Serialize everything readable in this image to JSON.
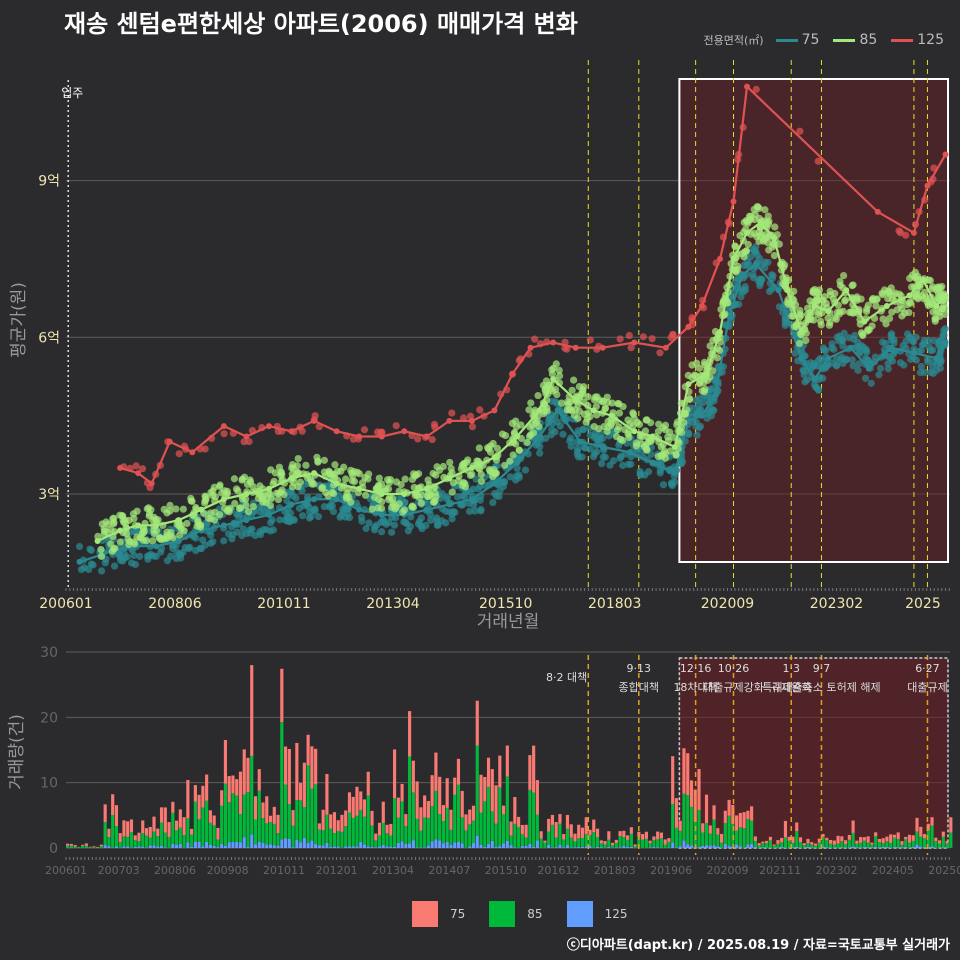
{
  "title": "재송 센텀e편한세상 아파트(2006) 매매가격 변화",
  "caption": "ⓒ디아파트(dapt.kr) / 2025.08.19 / 자료=국토교통부 실거래가",
  "legend_top": {
    "title": "전용면적(㎡)",
    "items": [
      {
        "name": "75",
        "color": "#2a8a92"
      },
      {
        "name": "85",
        "color": "#a3e87a"
      },
      {
        "name": "125",
        "color": "#e05252"
      }
    ]
  },
  "legend_bottom": {
    "items": [
      {
        "name": "75",
        "color": "#f87a72"
      },
      {
        "name": "85",
        "color": "#00b93a"
      },
      {
        "name": "125",
        "color": "#619cff"
      }
    ]
  },
  "chart_data": [
    {
      "type": "line",
      "xlabel": "거래년월",
      "ylabel": "평균가(원)",
      "x_ticks": [
        "200601",
        "200806",
        "201011",
        "201304",
        "201510",
        "201803",
        "202009",
        "202302",
        "2025"
      ],
      "y_ticks": [
        {
          "value": 3,
          "label": "3억"
        },
        {
          "value": 6,
          "label": "6억"
        },
        {
          "value": 9,
          "label": "9억"
        }
      ],
      "ylim": [
        1.2,
        11.5
      ],
      "xlim": [
        2006.0,
        2025.6
      ],
      "annotation": "입주",
      "grid": true,
      "highlight_range": [
        2019.6,
        2025.6
      ],
      "policy_lines": [
        2017.58,
        2018.7,
        2019.96,
        2020.8,
        2022.08,
        2022.75,
        2024.8,
        2025.1
      ],
      "series": [
        {
          "name": "75",
          "color": "#2a8a92",
          "points": [
            [
              2006.3,
              1.7
            ],
            [
              2007.0,
              1.9
            ],
            [
              2007.5,
              2.0
            ],
            [
              2008.0,
              2.0
            ],
            [
              2008.5,
              2.1
            ],
            [
              2009.0,
              2.3
            ],
            [
              2009.5,
              2.4
            ],
            [
              2010.0,
              2.5
            ],
            [
              2010.5,
              2.6
            ],
            [
              2011.0,
              2.8
            ],
            [
              2011.5,
              2.9
            ],
            [
              2012.0,
              2.9
            ],
            [
              2012.5,
              2.7
            ],
            [
              2013.0,
              2.6
            ],
            [
              2013.5,
              2.6
            ],
            [
              2014.0,
              2.7
            ],
            [
              2014.5,
              2.8
            ],
            [
              2015.0,
              2.9
            ],
            [
              2015.5,
              3.2
            ],
            [
              2016.0,
              3.6
            ],
            [
              2016.5,
              4.1
            ],
            [
              2016.9,
              4.6
            ],
            [
              2017.4,
              4.0
            ],
            [
              2017.9,
              3.9
            ],
            [
              2018.5,
              3.8
            ],
            [
              2019.0,
              3.6
            ],
            [
              2019.5,
              3.4
            ],
            [
              2019.8,
              4.4
            ],
            [
              2020.1,
              4.5
            ],
            [
              2020.4,
              4.9
            ],
            [
              2020.7,
              6.4
            ],
            [
              2021.0,
              7.2
            ],
            [
              2021.3,
              7.4
            ],
            [
              2021.8,
              6.9
            ],
            [
              2022.3,
              5.6
            ],
            [
              2022.6,
              5.2
            ],
            [
              2022.9,
              5.6
            ],
            [
              2023.4,
              5.8
            ],
            [
              2023.8,
              5.4
            ],
            [
              2024.3,
              5.8
            ],
            [
              2024.8,
              5.7
            ],
            [
              2025.3,
              5.6
            ],
            [
              2025.5,
              5.9
            ]
          ]
        },
        {
          "name": "85",
          "color": "#a3e87a",
          "points": [
            [
              2006.7,
              2.1
            ],
            [
              2007.2,
              2.3
            ],
            [
              2007.6,
              2.4
            ],
            [
              2008.0,
              2.4
            ],
            [
              2008.5,
              2.5
            ],
            [
              2009.0,
              2.7
            ],
            [
              2009.5,
              2.9
            ],
            [
              2010.0,
              3.0
            ],
            [
              2010.5,
              3.1
            ],
            [
              2011.0,
              3.3
            ],
            [
              2011.5,
              3.4
            ],
            [
              2012.0,
              3.2
            ],
            [
              2012.5,
              3.1
            ],
            [
              2013.0,
              3.0
            ],
            [
              2013.5,
              3.0
            ],
            [
              2014.0,
              3.1
            ],
            [
              2014.5,
              3.3
            ],
            [
              2015.0,
              3.5
            ],
            [
              2015.5,
              3.7
            ],
            [
              2016.0,
              4.1
            ],
            [
              2016.5,
              4.6
            ],
            [
              2016.8,
              5.2
            ],
            [
              2017.3,
              4.8
            ],
            [
              2017.7,
              4.6
            ],
            [
              2018.1,
              4.5
            ],
            [
              2018.6,
              4.2
            ],
            [
              2019.0,
              4.1
            ],
            [
              2019.5,
              3.9
            ],
            [
              2019.8,
              5.1
            ],
            [
              2020.2,
              5.3
            ],
            [
              2020.5,
              6.1
            ],
            [
              2020.8,
              7.5
            ],
            [
              2021.1,
              8.0
            ],
            [
              2021.4,
              8.2
            ],
            [
              2021.7,
              7.9
            ],
            [
              2022.0,
              6.9
            ],
            [
              2022.3,
              6.1
            ],
            [
              2022.6,
              6.6
            ],
            [
              2022.9,
              6.5
            ],
            [
              2023.3,
              6.9
            ],
            [
              2023.7,
              6.3
            ],
            [
              2024.2,
              6.6
            ],
            [
              2024.7,
              6.8
            ],
            [
              2025.0,
              7.1
            ],
            [
              2025.3,
              6.6
            ],
            [
              2025.5,
              6.8
            ]
          ]
        },
        {
          "name": "125",
          "color": "#e05252",
          "points": [
            [
              2007.2,
              3.5
            ],
            [
              2007.6,
              3.4
            ],
            [
              2007.9,
              3.2
            ],
            [
              2008.3,
              4.0
            ],
            [
              2008.8,
              3.8
            ],
            [
              2009.5,
              4.3
            ],
            [
              2010.0,
              4.1
            ],
            [
              2010.5,
              4.3
            ],
            [
              2011.0,
              4.2
            ],
            [
              2011.5,
              4.4
            ],
            [
              2012.0,
              4.2
            ],
            [
              2012.5,
              4.1
            ],
            [
              2013.0,
              4.1
            ],
            [
              2013.5,
              4.2
            ],
            [
              2014.0,
              4.1
            ],
            [
              2014.5,
              4.4
            ],
            [
              2015.0,
              4.4
            ],
            [
              2015.5,
              4.6
            ],
            [
              2015.9,
              5.3
            ],
            [
              2016.3,
              5.8
            ],
            [
              2016.8,
              5.9
            ],
            [
              2017.3,
              5.8
            ],
            [
              2017.9,
              5.8
            ],
            [
              2018.6,
              5.9
            ],
            [
              2019.3,
              5.8
            ],
            [
              2019.8,
              6.2
            ],
            [
              2020.1,
              6.6
            ],
            [
              2020.5,
              7.5
            ],
            [
              2020.8,
              8.6
            ],
            [
              2021.1,
              10.8
            ],
            [
              2024.0,
              8.4
            ],
            [
              2024.8,
              8.0
            ],
            [
              2025.1,
              8.9
            ],
            [
              2025.5,
              9.5
            ]
          ]
        }
      ]
    },
    {
      "type": "bar",
      "stacked": true,
      "xlabel": "",
      "ylabel": "거래량(건)",
      "x_ticks": [
        "200601",
        "200703",
        "200806",
        "200908",
        "201011",
        "201201",
        "201304",
        "201407",
        "201510",
        "201612",
        "201803",
        "201906",
        "202009",
        "202111",
        "202302",
        "202405",
        "202508"
      ],
      "y_ticks": [
        0,
        10,
        20,
        30
      ],
      "ylim": [
        0,
        30
      ],
      "xlim": [
        2006.0,
        2025.6
      ],
      "highlight_range": [
        2019.6,
        2025.6
      ],
      "policy_annotations": [
        {
          "x": 2017.58,
          "label": "8·2 대책"
        },
        {
          "x": 2018.7,
          "label": "9·13 종합대책"
        },
        {
          "x": 2019.96,
          "label": "12·16 18차대책"
        },
        {
          "x": 2020.8,
          "label": "10·26 대출규제강화"
        },
        {
          "x": 2022.08,
          "label": "1·3 규제완화"
        },
        {
          "x": 2022.75,
          "label": "9·7 특례대출축소 토허제 해제"
        },
        {
          "x": 2025.1,
          "label": "6·27 대출규제"
        }
      ],
      "volume_profile": [
        {
          "from": 2006.0,
          "to": 2006.8,
          "level": 0.4
        },
        {
          "from": 2006.8,
          "to": 2008.2,
          "level": 4
        },
        {
          "from": 2008.2,
          "to": 2009.6,
          "level": 7
        },
        {
          "from": 2009.6,
          "to": 2011.8,
          "level": 10
        },
        {
          "from": 2011.8,
          "to": 2013.0,
          "level": 5
        },
        {
          "from": 2013.0,
          "to": 2016.5,
          "level": 9
        },
        {
          "from": 2016.5,
          "to": 2017.8,
          "level": 3
        },
        {
          "from": 2017.8,
          "to": 2019.4,
          "level": 1.5
        },
        {
          "from": 2019.4,
          "to": 2020.0,
          "level": 9
        },
        {
          "from": 2020.0,
          "to": 2021.2,
          "level": 5
        },
        {
          "from": 2021.2,
          "to": 2024.8,
          "level": 1.5
        },
        {
          "from": 2024.8,
          "to": 2025.6,
          "level": 3
        }
      ]
    }
  ]
}
